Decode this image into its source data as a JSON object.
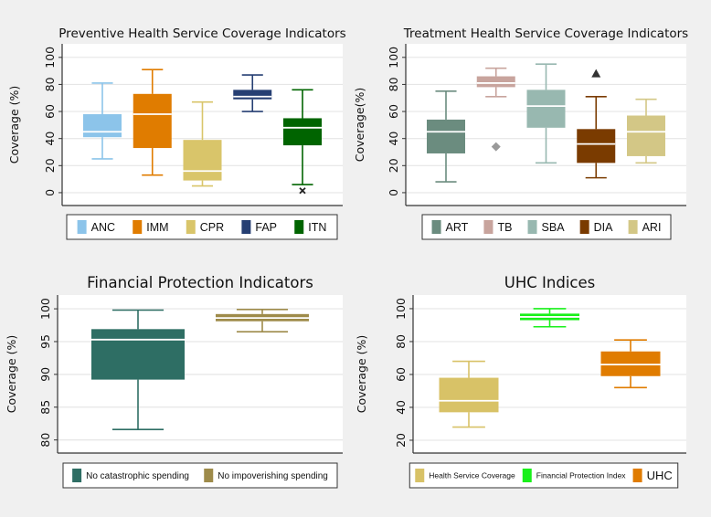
{
  "chart_data": [
    {
      "type": "box",
      "title": "Preventive Health Service Coverage Indicators",
      "ylabel": "Coverage (%)",
      "ylim": [
        -9.5,
        110
      ],
      "yticks": [
        0,
        20,
        40,
        60,
        80,
        100
      ],
      "grid": true,
      "legend_position": "bottom",
      "series": [
        {
          "name": "ANC",
          "color": "#8cc4ea",
          "min": 25,
          "q1": 41,
          "median": 45,
          "q3": 58,
          "max": 81,
          "outliers": []
        },
        {
          "name": "IMM",
          "color": "#e07c00",
          "min": 13,
          "q1": 33,
          "median": 58,
          "q3": 73,
          "max": 91,
          "outliers": []
        },
        {
          "name": "CPR",
          "color": "#d9c56a",
          "min": 5,
          "q1": 9,
          "median": 16,
          "q3": 39,
          "max": 67,
          "outliers": []
        },
        {
          "name": "FAP",
          "color": "#263f73",
          "min": 60,
          "q1": 69,
          "median": 71,
          "q3": 76,
          "max": 87,
          "outliers": []
        },
        {
          "name": "ITN",
          "color": "#006400",
          "min": 6,
          "q1": 35,
          "median": 48,
          "q3": 55,
          "max": 76,
          "outliers": [
            {
              "value": 1.5,
              "marker": "x",
              "color": "#222222"
            }
          ]
        }
      ]
    },
    {
      "type": "box",
      "title": "Treatment Health Service Coverage Indicators",
      "ylabel": "Coverage(%)",
      "ylim": [
        -9.5,
        110
      ],
      "yticks": [
        0,
        20,
        40,
        60,
        80,
        100
      ],
      "grid": true,
      "legend_position": "bottom",
      "series": [
        {
          "name": "ART",
          "color": "#6b8c7f",
          "min": 8,
          "q1": 29,
          "median": 45,
          "q3": 54,
          "max": 75,
          "outliers": []
        },
        {
          "name": "TB",
          "color": "#c8a49d",
          "min": 71,
          "q1": 78,
          "median": 81,
          "q3": 86,
          "max": 92,
          "outliers": [
            {
              "value": 34,
              "marker": "diamond",
              "color": "#9a9a9a"
            }
          ]
        },
        {
          "name": "SBA",
          "color": "#98b8b0",
          "min": 22,
          "q1": 48,
          "median": 64,
          "q3": 76,
          "max": 95,
          "outliers": []
        },
        {
          "name": "DIA",
          "color": "#7a3b00",
          "min": 11,
          "q1": 22,
          "median": 36,
          "q3": 47,
          "max": 71,
          "outliers": [
            {
              "value": 88,
              "marker": "triangle",
              "color": "#333333"
            }
          ]
        },
        {
          "name": "ARI",
          "color": "#d3c786",
          "min": 22,
          "q1": 27,
          "median": 45,
          "q3": 57,
          "max": 69,
          "outliers": []
        }
      ]
    },
    {
      "type": "box",
      "title": "Financial Protection Indicators",
      "ylabel": "Coverage (%)",
      "ylim": [
        78,
        102.1
      ],
      "yticks": [
        80,
        85,
        90,
        95,
        100
      ],
      "grid": true,
      "legend_position": "bottom",
      "series": [
        {
          "name": "No catastrophic spending",
          "color": "#2e6e64",
          "min": 81.6,
          "q1": 89.2,
          "median": 95.3,
          "q3": 96.9,
          "max": 99.8,
          "outliers": []
        },
        {
          "name": "No impoverishing spending",
          "color": "#9e8b4a",
          "min": 96.5,
          "q1": 98.1,
          "median": 98.6,
          "q3": 99.2,
          "max": 99.9,
          "outliers": []
        }
      ]
    },
    {
      "type": "box",
      "title": "UHC Indices",
      "ylabel": "Coverage (%)",
      "ylim": [
        12.2,
        108.3
      ],
      "yticks": [
        20,
        40,
        60,
        80,
        100
      ],
      "grid": true,
      "legend_position": "bottom",
      "series": [
        {
          "name": "Health Service Coverage",
          "color": "#d8c267",
          "min": 28,
          "q1": 37,
          "median": 44,
          "q3": 58,
          "max": 68,
          "outliers": []
        },
        {
          "name": "Financial Protection Index",
          "color": "#19f01a",
          "min": 89,
          "q1": 93,
          "median": 95,
          "q3": 97,
          "max": 100,
          "outliers": []
        },
        {
          "name": "UHC",
          "color": "#e07c00",
          "min": 52,
          "q1": 59,
          "median": 66,
          "q3": 74,
          "max": 81,
          "outliers": []
        }
      ]
    }
  ]
}
